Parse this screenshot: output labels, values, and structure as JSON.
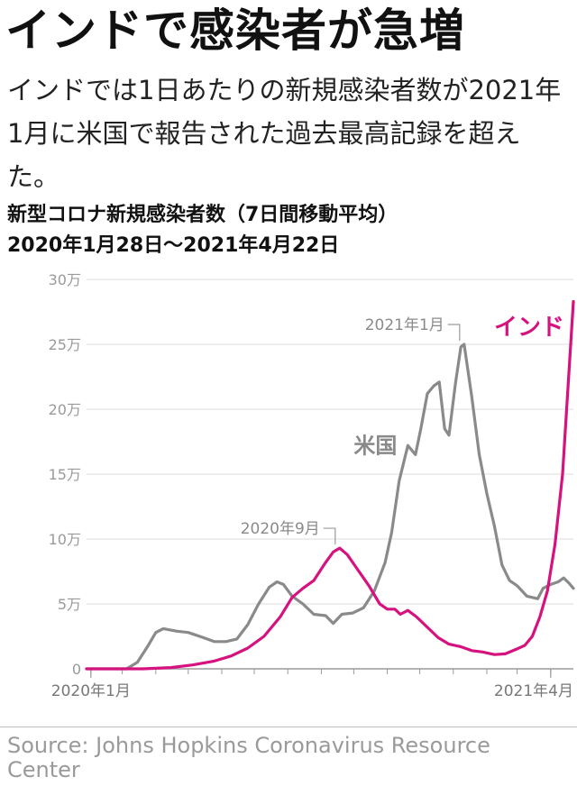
{
  "headline": "インドで感染者が急増",
  "lede": "インドでは1日あたりの新規感染者数が2021年1月に米国で報告された過去最高記録を超えた。",
  "chart_title": {
    "line1": "新型コロナ新規感染者数（7日間移動平均）",
    "line2": "2020年1月28日～2021年4月22日"
  },
  "source": "Source: Johns Hopkins Coronavirus Resource Center",
  "colors": {
    "india": "#d6127e",
    "us": "#8a8a8a",
    "grid": "#dcdcdc",
    "axis": "#9a9a9a"
  },
  "chart_data": {
    "type": "line",
    "title": "新型コロナ新規感染者数（7日間移動平均）",
    "subtitle": "2020年1月28日～2021年4月22日",
    "x_range": [
      "2020-01-28",
      "2021-04-22"
    ],
    "ylim": [
      0,
      300000
    ],
    "y_ticks": [
      {
        "value": 0,
        "label": "0"
      },
      {
        "value": 50000,
        "label": "5万"
      },
      {
        "value": 100000,
        "label": "10万"
      },
      {
        "value": 150000,
        "label": "15万"
      },
      {
        "value": 200000,
        "label": "20万"
      },
      {
        "value": 250000,
        "label": "25万"
      },
      {
        "value": 300000,
        "label": "30万"
      }
    ],
    "x_ticks": [
      {
        "date": "2020-02-01",
        "label": "2020年1月"
      },
      {
        "date": "2021-04-01",
        "label": "2021年4月"
      }
    ],
    "grid": true,
    "series": [
      {
        "name": "米国",
        "color": "#8a8a8a",
        "points": [
          [
            "2020-01-28",
            0
          ],
          [
            "2020-03-05",
            0
          ],
          [
            "2020-03-15",
            5000
          ],
          [
            "2020-03-25",
            18000
          ],
          [
            "2020-04-01",
            28000
          ],
          [
            "2020-04-08",
            31000
          ],
          [
            "2020-04-20",
            29000
          ],
          [
            "2020-05-01",
            28000
          ],
          [
            "2020-05-15",
            24000
          ],
          [
            "2020-05-25",
            21000
          ],
          [
            "2020-06-05",
            21000
          ],
          [
            "2020-06-15",
            23000
          ],
          [
            "2020-06-25",
            34000
          ],
          [
            "2020-07-05",
            50000
          ],
          [
            "2020-07-15",
            63000
          ],
          [
            "2020-07-22",
            67000
          ],
          [
            "2020-07-28",
            65000
          ],
          [
            "2020-08-05",
            56000
          ],
          [
            "2020-08-15",
            50000
          ],
          [
            "2020-08-25",
            42000
          ],
          [
            "2020-09-05",
            41000
          ],
          [
            "2020-09-12",
            35000
          ],
          [
            "2020-09-20",
            42000
          ],
          [
            "2020-09-30",
            43000
          ],
          [
            "2020-10-10",
            47000
          ],
          [
            "2020-10-20",
            60000
          ],
          [
            "2020-10-30",
            82000
          ],
          [
            "2020-11-05",
            105000
          ],
          [
            "2020-11-12",
            145000
          ],
          [
            "2020-11-20",
            172000
          ],
          [
            "2020-11-27",
            165000
          ],
          [
            "2020-12-02",
            185000
          ],
          [
            "2020-12-08",
            212000
          ],
          [
            "2020-12-14",
            218000
          ],
          [
            "2020-12-19",
            221000
          ],
          [
            "2020-12-24",
            185000
          ],
          [
            "2020-12-28",
            180000
          ],
          [
            "2021-01-03",
            220000
          ],
          [
            "2021-01-08",
            248000
          ],
          [
            "2021-01-11",
            250000
          ],
          [
            "2021-01-18",
            210000
          ],
          [
            "2021-01-25",
            165000
          ],
          [
            "2021-02-01",
            135000
          ],
          [
            "2021-02-08",
            110000
          ],
          [
            "2021-02-15",
            80000
          ],
          [
            "2021-02-22",
            68000
          ],
          [
            "2021-03-01",
            64000
          ],
          [
            "2021-03-10",
            56000
          ],
          [
            "2021-03-20",
            54000
          ],
          [
            "2021-03-25",
            62000
          ],
          [
            "2021-04-01",
            65000
          ],
          [
            "2021-04-08",
            67000
          ],
          [
            "2021-04-13",
            70000
          ],
          [
            "2021-04-18",
            66000
          ],
          [
            "2021-04-22",
            62000
          ]
        ]
      },
      {
        "name": "インド",
        "color": "#d6127e",
        "points": [
          [
            "2020-01-28",
            0
          ],
          [
            "2020-03-20",
            0
          ],
          [
            "2020-04-15",
            1000
          ],
          [
            "2020-05-05",
            3000
          ],
          [
            "2020-05-25",
            6000
          ],
          [
            "2020-06-10",
            10000
          ],
          [
            "2020-06-25",
            16000
          ],
          [
            "2020-07-10",
            25000
          ],
          [
            "2020-07-25",
            40000
          ],
          [
            "2020-08-05",
            55000
          ],
          [
            "2020-08-15",
            62000
          ],
          [
            "2020-08-25",
            68000
          ],
          [
            "2020-09-05",
            82000
          ],
          [
            "2020-09-12",
            90000
          ],
          [
            "2020-09-18",
            93000
          ],
          [
            "2020-09-25",
            88000
          ],
          [
            "2020-10-05",
            76000
          ],
          [
            "2020-10-15",
            64000
          ],
          [
            "2020-10-25",
            50000
          ],
          [
            "2020-11-01",
            46000
          ],
          [
            "2020-11-08",
            46000
          ],
          [
            "2020-11-13",
            42000
          ],
          [
            "2020-11-20",
            45000
          ],
          [
            "2020-11-28",
            40000
          ],
          [
            "2020-12-08",
            32000
          ],
          [
            "2020-12-18",
            24000
          ],
          [
            "2020-12-28",
            19000
          ],
          [
            "2021-01-08",
            17000
          ],
          [
            "2021-01-18",
            14000
          ],
          [
            "2021-01-28",
            13000
          ],
          [
            "2021-02-08",
            11000
          ],
          [
            "2021-02-18",
            11500
          ],
          [
            "2021-02-28",
            15000
          ],
          [
            "2021-03-08",
            18000
          ],
          [
            "2021-03-15",
            25000
          ],
          [
            "2021-03-22",
            40000
          ],
          [
            "2021-03-29",
            60000
          ],
          [
            "2021-04-05",
            96000
          ],
          [
            "2021-04-12",
            150000
          ],
          [
            "2021-04-18",
            230000
          ],
          [
            "2021-04-22",
            283000
          ]
        ]
      }
    ],
    "annotations": [
      {
        "label": "2020年9月",
        "date": "2020-09-18",
        "value": 93000,
        "series": "インド"
      },
      {
        "label": "2021年1月",
        "date": "2021-01-11",
        "value": 250000,
        "series": "米国"
      }
    ]
  }
}
